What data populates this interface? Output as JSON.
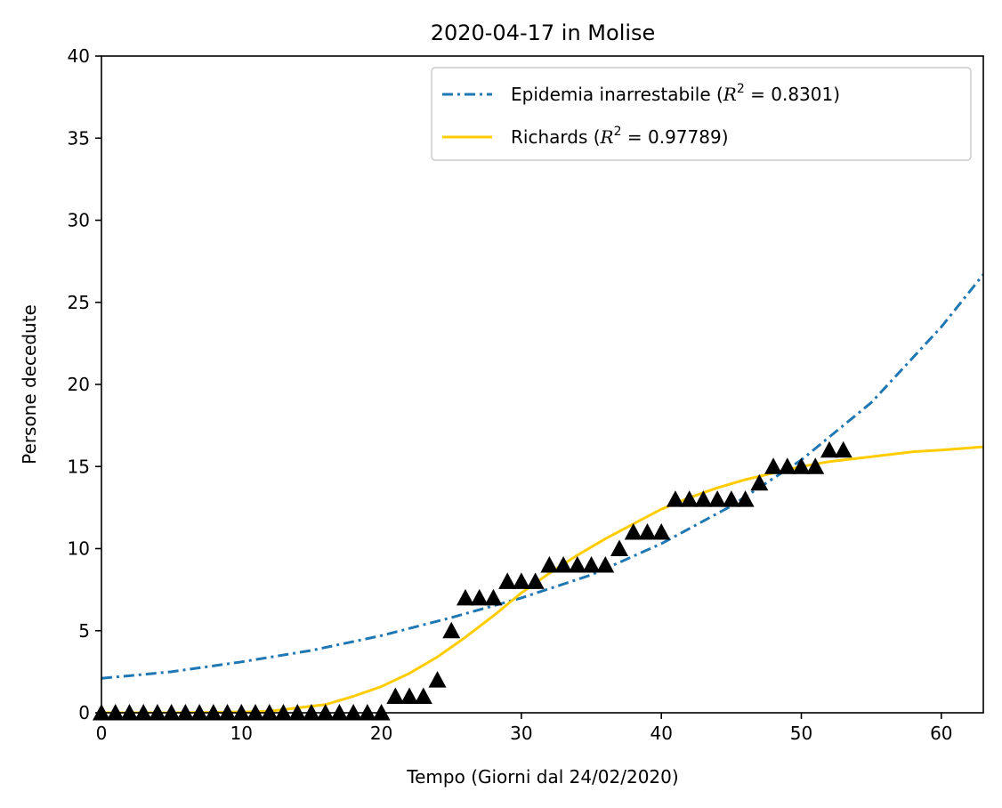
{
  "chart_data": {
    "type": "line",
    "title": "2020-04-17 in Molise",
    "xlabel": "Tempo (Giorni dal 24/02/2020)",
    "ylabel": "Persone decedute",
    "xlim": [
      0,
      63
    ],
    "ylim": [
      0,
      40
    ],
    "xticks": [
      0,
      10,
      20,
      30,
      40,
      50,
      60
    ],
    "yticks": [
      0,
      5,
      10,
      15,
      20,
      25,
      30,
      35,
      40
    ],
    "grid": false,
    "legend_position": "top-right",
    "observed": {
      "marker": "triangle",
      "color": "#000000",
      "x": [
        0,
        1,
        2,
        3,
        4,
        5,
        6,
        7,
        8,
        9,
        10,
        11,
        12,
        13,
        14,
        15,
        16,
        17,
        18,
        19,
        20,
        21,
        22,
        23,
        24,
        25,
        26,
        27,
        28,
        29,
        30,
        31,
        32,
        33,
        34,
        35,
        36,
        37,
        38,
        39,
        40,
        41,
        42,
        43,
        44,
        45,
        46,
        47,
        48,
        49,
        50,
        51,
        52,
        53
      ],
      "y": [
        0,
        0,
        0,
        0,
        0,
        0,
        0,
        0,
        0,
        0,
        0,
        0,
        0,
        0,
        0,
        0,
        0,
        0,
        0,
        0,
        0,
        1,
        1,
        1,
        2,
        5,
        7,
        7,
        7,
        8,
        8,
        8,
        9,
        9,
        9,
        9,
        9,
        10,
        11,
        11,
        11,
        13,
        13,
        13,
        13,
        13,
        13,
        14,
        15,
        15,
        15,
        15,
        16,
        16
      ]
    },
    "series": [
      {
        "name": "Epidemia inarrestabile ($R^2 = 0.8301$)",
        "legend_main": "Epidemia inarrestabile (",
        "legend_math_r": "R",
        "legend_math_exp": "2",
        "legend_math_rest": " = 0.8301)",
        "style": "dashdot",
        "color": "#1f77b4",
        "x": [
          0,
          5,
          10,
          15,
          20,
          25,
          30,
          35,
          40,
          45,
          50,
          55,
          60,
          63
        ],
        "y": [
          2.1,
          2.5,
          3.1,
          3.8,
          4.7,
          5.8,
          7.0,
          8.4,
          10.3,
          12.6,
          15.4,
          18.9,
          23.5,
          26.7
        ]
      },
      {
        "name": "Richards ($R^2 = 0.97789$)",
        "legend_main": "Richards (",
        "legend_math_r": "R",
        "legend_math_exp": "2",
        "legend_math_rest": " = 0.97789)",
        "style": "solid",
        "color": "#ffcc00",
        "x": [
          0,
          5,
          10,
          12,
          14,
          16,
          18,
          20,
          22,
          24,
          26,
          28,
          30,
          32,
          34,
          36,
          38,
          40,
          42,
          44,
          46,
          48,
          50,
          52,
          55,
          58,
          60,
          63
        ],
        "y": [
          0,
          0,
          0.05,
          0.1,
          0.3,
          0.5,
          1.0,
          1.6,
          2.4,
          3.4,
          4.6,
          5.9,
          7.3,
          8.5,
          9.6,
          10.6,
          11.5,
          12.4,
          13.1,
          13.7,
          14.2,
          14.6,
          15.0,
          15.3,
          15.6,
          15.9,
          16.0,
          16.2
        ]
      }
    ]
  },
  "colors": {
    "background": "#ffffff",
    "axes": "#000000"
  }
}
